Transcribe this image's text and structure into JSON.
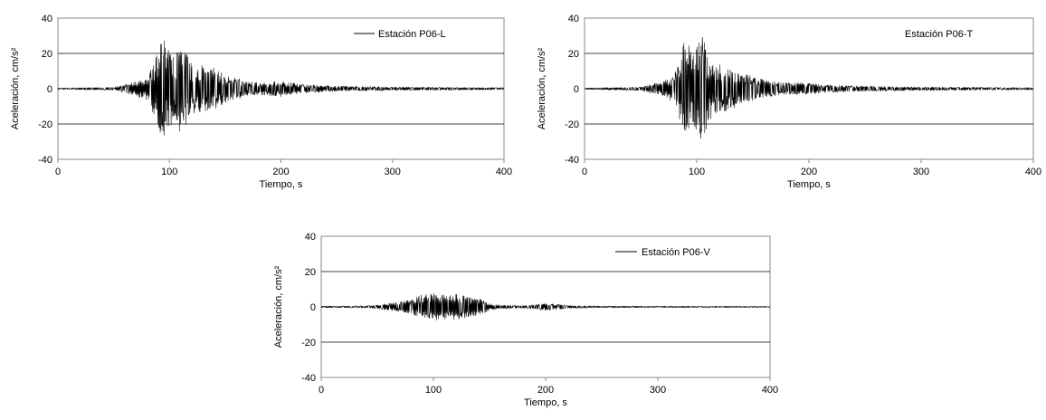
{
  "chart_data": [
    {
      "type": "line",
      "xlabel": "Tiempo, s",
      "ylabel": "Aceleración, cm/s²",
      "xlim": [
        0,
        400
      ],
      "ylim": [
        -40,
        40
      ],
      "x_ticks": [
        "0",
        "100",
        "200",
        "300",
        "400"
      ],
      "y_ticks": [
        "40",
        "20",
        "0",
        "-20",
        "-40"
      ],
      "gridlines_y": [
        20,
        -20
      ],
      "legend": "top-right",
      "series": [
        {
          "name": "Estación P06-L",
          "color": "#000000",
          "envelope": {
            "t": [
              0,
              50,
              60,
              70,
              80,
              85,
              90,
              95,
              100,
              105,
              110,
              115,
              120,
              130,
              140,
              150,
              160,
              170,
              180,
              190,
              200,
              220,
              250,
              300,
              350,
              400
            ],
            "amp": [
              0.4,
              0.8,
              2.5,
              4,
              7,
              14,
              25,
              28,
              22,
              20,
              26,
              20,
              14,
              13,
              12,
              8,
              6,
              4,
              3.5,
              4,
              4.5,
              2.5,
              1.5,
              1,
              0.8,
              0.6
            ]
          }
        }
      ]
    },
    {
      "type": "line",
      "xlabel": "Tiempo, s",
      "ylabel": "Aceleración, cm/s²",
      "xlim": [
        0,
        400
      ],
      "ylim": [
        -40,
        40
      ],
      "x_ticks": [
        "0",
        "100",
        "200",
        "300",
        "400"
      ],
      "y_ticks": [
        "40",
        "20",
        "0",
        "-20",
        "-40"
      ],
      "gridlines_y": [
        20,
        -20
      ],
      "legend": "top-right",
      "series": [
        {
          "name": "Estación P06-T",
          "color": "#000000",
          "envelope": {
            "t": [
              0,
              50,
              60,
              70,
              80,
              85,
              90,
              95,
              100,
              105,
              110,
              115,
              120,
              130,
              140,
              150,
              160,
              170,
              180,
              190,
              200,
              220,
              250,
              300,
              350,
              400
            ],
            "amp": [
              0.4,
              1,
              2.5,
              4,
              8,
              18,
              30,
              22,
              27,
              30,
              20,
              15,
              14,
              12,
              9,
              7,
              5,
              4,
              3.5,
              3.5,
              3,
              2,
              1.5,
              1,
              0.8,
              0.6
            ]
          }
        }
      ]
    },
    {
      "type": "line",
      "xlabel": "Tiempo, s",
      "ylabel": "Aceleración, cm/s²",
      "xlim": [
        0,
        400
      ],
      "ylim": [
        -40,
        40
      ],
      "x_ticks": [
        "0",
        "100",
        "200",
        "300",
        "400"
      ],
      "y_ticks": [
        "40",
        "20",
        "0",
        "-20",
        "-40"
      ],
      "gridlines_y": [
        20,
        -20
      ],
      "legend": "top-right",
      "series": [
        {
          "name": "Estación P06-V",
          "color": "#000000",
          "envelope": {
            "t": [
              0,
              40,
              50,
              60,
              70,
              80,
              90,
              100,
              110,
              120,
              130,
              140,
              150,
              160,
              180,
              190,
              200,
              210,
              220,
              250,
              300,
              350,
              400
            ],
            "amp": [
              0.4,
              0.6,
              1.2,
              2,
              3,
              4,
              7,
              8,
              7,
              7.5,
              6,
              5,
              2,
              1,
              0.8,
              1.2,
              2,
              1.5,
              0.8,
              0.5,
              0.4,
              0.4,
              0.3
            ]
          }
        }
      ]
    }
  ]
}
